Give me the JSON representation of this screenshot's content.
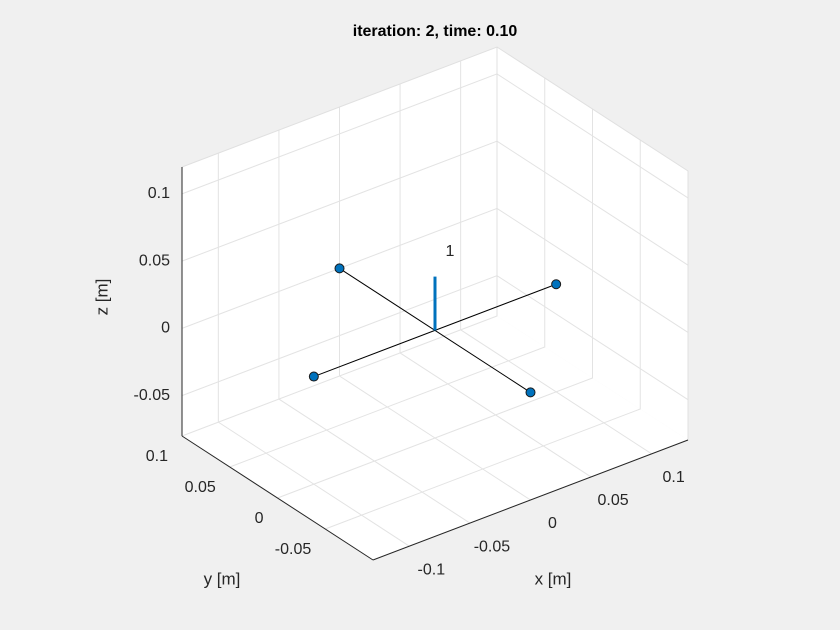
{
  "chart_data": {
    "type": "quadrotor3d",
    "title": "iteration: 2, time: 0.10",
    "xlabel": "x [m]",
    "ylabel": "y [m]",
    "zlabel": "z [m]",
    "xlim": [
      -0.13,
      0.13
    ],
    "ylim": [
      -0.1,
      0.1
    ],
    "zlim": [
      -0.08,
      0.12
    ],
    "xticks": [
      -0.1,
      -0.05,
      0,
      0.05,
      0.1
    ],
    "yticks": [
      -0.05,
      0,
      0.05,
      0.1
    ],
    "zticks": [
      -0.05,
      0,
      0.05,
      0.1
    ],
    "grid": true,
    "rotors": {
      "x": [
        -0.1,
        0.1,
        0,
        0
      ],
      "y": [
        0,
        0,
        0.1,
        -0.1
      ],
      "z": [
        0,
        0,
        0,
        0
      ],
      "color": "#0072bd"
    },
    "thrust": {
      "x": 0,
      "y": 0,
      "z": 0,
      "dz": 0.04,
      "label": 1,
      "color": "#0072bd"
    }
  }
}
